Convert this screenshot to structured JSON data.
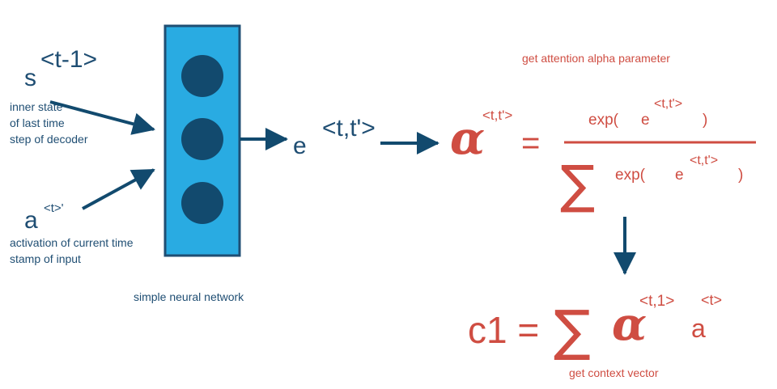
{
  "colors": {
    "network_fill": "#29abe2",
    "network_border": "#1f4e73",
    "node": "#124a6e",
    "arrow": "#124a6e",
    "text_blue": "#1f4e73",
    "text_red": "#cf4d42"
  },
  "inputs": {
    "s_symbol": "s",
    "s_superscript": "<t-1>",
    "s_caption_lines": [
      "inner state",
      "of last time",
      "step of decoder"
    ],
    "a_symbol": "a",
    "a_superscript": "<t>'",
    "a_caption_lines": [
      "activation of current time",
      "stamp of input"
    ]
  },
  "network": {
    "label": "simple neural network",
    "node_count": 3
  },
  "energy": {
    "symbol": "e",
    "superscript": "<t,t'>"
  },
  "attention": {
    "heading": "get attention alpha parameter",
    "alpha_symbol": "α",
    "alpha_superscript": "<t,t'>",
    "equals": "=",
    "numerator_exp": "exp(",
    "numerator_e": "e",
    "numerator_superscript": "<t,t'>",
    "numerator_close": ")",
    "sum_symbol": "∑",
    "denominator_exp": "exp(",
    "denominator_e": "e",
    "denominator_superscript": "<t,t'>",
    "denominator_close": ")"
  },
  "context": {
    "lhs": "c1 =",
    "sum_symbol": "∑",
    "alpha_symbol": "α",
    "alpha_superscript": "<t,1>",
    "a_symbol": "a",
    "a_superscript": "<t>",
    "caption": "get context vector"
  }
}
